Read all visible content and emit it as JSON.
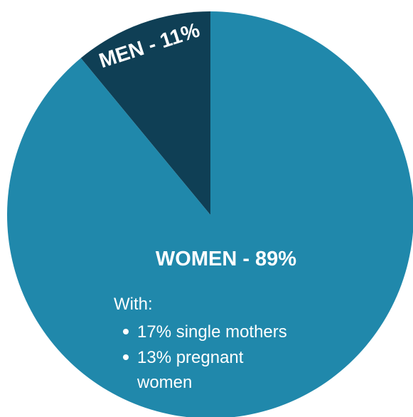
{
  "chart_data": {
    "type": "pie",
    "categories": [
      "MEN",
      "WOMEN"
    ],
    "values": [
      11,
      89
    ],
    "unit": "%",
    "slices": [
      {
        "name": "MEN",
        "label": "MEN - 11%",
        "value": 11,
        "color": "#0f3f55"
      },
      {
        "name": "WOMEN",
        "label": "WOMEN - 89%",
        "value": 89,
        "color": "#2088ab"
      }
    ],
    "annotations": {
      "with_label": "With:",
      "bullets": [
        "17% single mothers",
        "13% pregnant",
        "women"
      ]
    },
    "title": "",
    "legend": "none"
  },
  "colors": {
    "text_light": "#ffffff",
    "background": "#ffffff"
  }
}
